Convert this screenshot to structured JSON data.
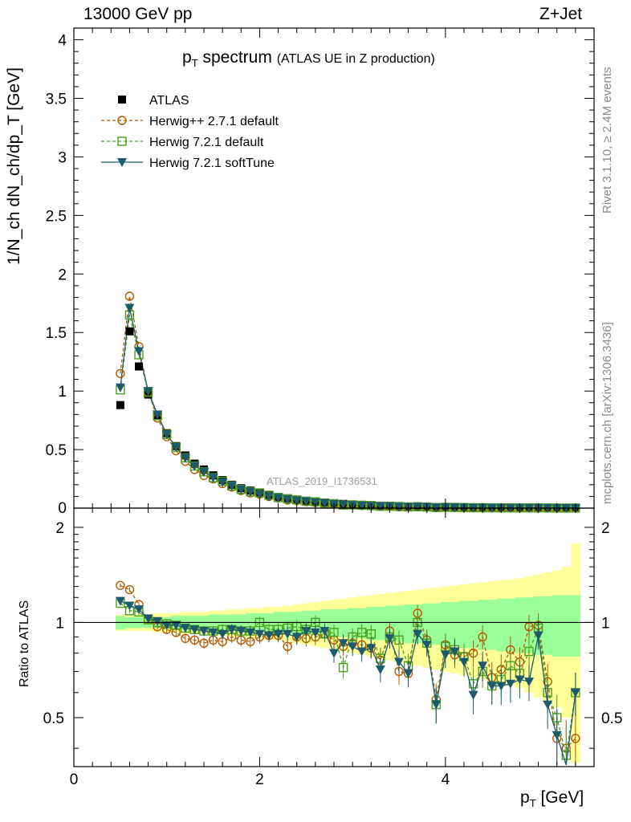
{
  "header": {
    "left": "13000 GeV pp",
    "right": "Z+Jet"
  },
  "side_labels": {
    "rivet": "Rivet 3.1.10, ≥ 2.4M events",
    "mcplots": "mcplots.cern.ch [arXiv:1306.3436]"
  },
  "watermark": "ATLAS_2019_I1736531",
  "chart_data": [
    {
      "type": "line",
      "title": "p_T spectrum",
      "title_parts": {
        "main": "p",
        "sub": "T",
        "rest": " spectrum",
        "note": "(ATLAS UE in Z production)"
      },
      "ylabel": "1/N_ch dN_ch/dp_T [GeV]",
      "xlim": [
        0,
        5.6
      ],
      "ylim": [
        0,
        4.1
      ],
      "yticks": [
        0,
        0.5,
        1,
        1.5,
        2,
        2.5,
        3,
        3.5,
        4
      ],
      "ytick_labels": [
        "0",
        "0.5",
        "1",
        "1.5",
        "2",
        "2.5",
        "3",
        "3.5",
        "4"
      ],
      "legend_position": "top-left",
      "x": [
        0.5,
        0.6,
        0.7,
        0.8,
        0.9,
        1.0,
        1.1,
        1.2,
        1.3,
        1.4,
        1.5,
        1.6,
        1.7,
        1.8,
        1.9,
        2.0,
        2.1,
        2.2,
        2.3,
        2.4,
        2.5,
        2.6,
        2.7,
        2.8,
        2.9,
        3.0,
        3.1,
        3.2,
        3.3,
        3.4,
        3.5,
        3.6,
        3.7,
        3.8,
        3.9,
        4.0,
        4.1,
        4.2,
        4.3,
        4.4,
        4.5,
        4.6,
        4.7,
        4.8,
        4.9,
        5.0,
        5.1,
        5.2,
        5.3,
        5.4
      ],
      "series": [
        {
          "name": "ATLAS",
          "color": "#000000",
          "marker": "filled-square",
          "values": [
            0.88,
            1.51,
            1.21,
            0.97,
            0.79,
            0.64,
            0.53,
            0.45,
            0.38,
            0.33,
            0.28,
            0.24,
            0.2,
            0.17,
            0.15,
            0.13,
            0.11,
            0.095,
            0.083,
            0.072,
            0.062,
            0.054,
            0.047,
            0.041,
            0.036,
            0.031,
            0.027,
            0.024,
            0.021,
            0.018,
            0.016,
            0.014,
            0.012,
            0.011,
            0.0095,
            0.0083,
            0.0073,
            0.0064,
            0.0056,
            0.0049,
            0.0043,
            0.0038,
            0.0033,
            0.0029,
            0.0026,
            0.0023,
            0.002,
            0.0018,
            0.0016,
            0.0014
          ]
        },
        {
          "name": "Herwig++ 2.7.1 default",
          "color": "#b35900",
          "marker": "open-circle",
          "dash": "dashed",
          "values": [
            1.15,
            1.81,
            1.38,
            0.99,
            0.77,
            0.61,
            0.49,
            0.4,
            0.33,
            0.28,
            0.25,
            0.21,
            0.18,
            0.15,
            0.13,
            0.12,
            0.1,
            0.087,
            0.07,
            0.065,
            0.055,
            0.048,
            0.043,
            0.036,
            0.03,
            0.027,
            0.023,
            0.02,
            0.016,
            0.017,
            0.011,
            0.01,
            0.013,
            0.0098,
            0.0055,
            0.007,
            0.0058,
            0.005,
            0.0045,
            0.0044,
            0.0029,
            0.0027,
            0.0027,
            0.0022,
            0.0025,
            0.0022,
            0.0013,
            0.00078,
            0.00064,
            0.0006
          ]
        },
        {
          "name": "Herwig 7.2.1 default",
          "color": "#4aa01c",
          "marker": "open-square",
          "dash": "dashed",
          "values": [
            1.01,
            1.65,
            1.31,
            0.99,
            0.79,
            0.63,
            0.52,
            0.43,
            0.36,
            0.31,
            0.26,
            0.23,
            0.19,
            0.16,
            0.14,
            0.13,
            0.11,
            0.09,
            0.08,
            0.07,
            0.059,
            0.054,
            0.043,
            0.038,
            0.026,
            0.028,
            0.025,
            0.022,
            0.016,
            0.016,
            0.014,
            0.01,
            0.012,
            0.0095,
            0.0052,
            0.007,
            0.006,
            0.005,
            0.0036,
            0.0034,
            0.0027,
            0.0025,
            0.0024,
            0.002,
            0.0021,
            0.0022,
            0.0012,
            0.0009,
            0.0006,
            0.00084
          ]
        },
        {
          "name": "Herwig 7.2.1 softTune",
          "color": "#1e5a6e",
          "marker": "filled-triangle-down",
          "dash": "solid",
          "values": [
            1.03,
            1.71,
            1.34,
            1.0,
            0.8,
            0.63,
            0.52,
            0.43,
            0.36,
            0.31,
            0.26,
            0.22,
            0.19,
            0.16,
            0.14,
            0.12,
            0.1,
            0.087,
            0.076,
            0.065,
            0.058,
            0.05,
            0.044,
            0.033,
            0.031,
            0.026,
            0.022,
            0.02,
            0.015,
            0.016,
            0.012,
            0.0097,
            0.011,
            0.0094,
            0.0052,
            0.0066,
            0.0059,
            0.0048,
            0.0033,
            0.0036,
            0.0027,
            0.0024,
            0.0021,
            0.0019,
            0.0017,
            0.0021,
            0.0011,
            0.0008,
            0.00056,
            0.00084
          ]
        }
      ]
    },
    {
      "type": "line",
      "ylabel": "Ratio to ATLAS",
      "xlabel": "p_T [GeV]",
      "xlabel_parts": {
        "main": "p",
        "sub": "T",
        "rest": " [GeV]"
      },
      "xlim": [
        0,
        5.6
      ],
      "ylim": [
        0.35,
        2.3
      ],
      "xticks": [
        0,
        2,
        4
      ],
      "xtick_labels": [
        "0",
        "2",
        "4"
      ],
      "yticks": [
        0.5,
        1,
        2
      ],
      "ytick_labels": [
        "0.5",
        "1",
        "2"
      ],
      "reference_line": 1,
      "uncertainty_bands": {
        "inner_color": "#99ff99",
        "outer_color": "#ffff99",
        "inner_halfwidth": [
          0.05,
          0.04,
          0.04,
          0.04,
          0.04,
          0.04,
          0.05,
          0.05,
          0.05,
          0.05,
          0.06,
          0.06,
          0.06,
          0.06,
          0.07,
          0.07,
          0.07,
          0.08,
          0.08,
          0.08,
          0.09,
          0.09,
          0.1,
          0.1,
          0.1,
          0.11,
          0.11,
          0.12,
          0.12,
          0.13,
          0.13,
          0.14,
          0.14,
          0.15,
          0.15,
          0.16,
          0.16,
          0.17,
          0.17,
          0.18,
          0.18,
          0.19,
          0.19,
          0.2,
          0.2,
          0.21,
          0.21,
          0.22,
          0.22,
          0.22
        ],
        "outer_halfwidth": [
          0.06,
          0.06,
          0.06,
          0.06,
          0.07,
          0.07,
          0.07,
          0.08,
          0.08,
          0.08,
          0.09,
          0.09,
          0.1,
          0.1,
          0.11,
          0.11,
          0.12,
          0.12,
          0.13,
          0.14,
          0.15,
          0.16,
          0.17,
          0.18,
          0.19,
          0.2,
          0.21,
          0.22,
          0.23,
          0.24,
          0.25,
          0.26,
          0.27,
          0.28,
          0.29,
          0.3,
          0.31,
          0.32,
          0.33,
          0.34,
          0.35,
          0.36,
          0.37,
          0.38,
          0.4,
          0.42,
          0.44,
          0.46,
          0.5,
          0.78
        ]
      },
      "series": [
        {
          "name": "Herwig++ 2.7.1 default",
          "color": "#b35900",
          "marker": "open-circle",
          "dash": "dashed",
          "values": [
            1.31,
            1.27,
            1.14,
            1.02,
            0.97,
            0.95,
            0.93,
            0.89,
            0.88,
            0.86,
            0.88,
            0.87,
            0.9,
            0.88,
            0.87,
            0.9,
            0.91,
            0.91,
            0.84,
            0.9,
            0.89,
            0.9,
            0.92,
            0.88,
            0.84,
            0.86,
            0.85,
            0.83,
            0.76,
            0.94,
            0.7,
            0.69,
            1.07,
            0.88,
            0.57,
            0.85,
            0.79,
            0.78,
            0.8,
            0.9,
            0.67,
            0.71,
            0.82,
            0.75,
            0.97,
            0.98,
            0.65,
            0.43,
            0.4,
            0.43
          ]
        },
        {
          "name": "Herwig 7.2.1 default",
          "color": "#4aa01c",
          "marker": "open-square",
          "dash": "dashed",
          "values": [
            1.15,
            1.09,
            1.08,
            1.02,
            1.0,
            0.99,
            0.98,
            0.96,
            0.95,
            0.94,
            0.94,
            0.95,
            0.95,
            0.94,
            0.94,
            1.0,
            0.95,
            0.95,
            0.96,
            0.97,
            0.95,
            1.0,
            0.92,
            0.93,
            0.72,
            0.9,
            0.93,
            0.92,
            0.77,
            0.9,
            0.88,
            0.73,
            1.0,
            0.86,
            0.55,
            0.84,
            0.82,
            0.78,
            0.64,
            0.7,
            0.63,
            0.66,
            0.73,
            0.69,
            0.81,
            0.96,
            0.6,
            0.5,
            0.38,
            0.6
          ]
        },
        {
          "name": "Herwig 7.2.1 softTune",
          "color": "#1e5a6e",
          "marker": "filled-triangle-down",
          "dash": "solid",
          "values": [
            1.17,
            1.13,
            1.1,
            1.03,
            1.01,
            0.98,
            0.98,
            0.96,
            0.95,
            0.94,
            0.93,
            0.92,
            0.95,
            0.94,
            0.93,
            0.92,
            0.91,
            0.92,
            0.92,
            0.9,
            0.94,
            0.93,
            0.94,
            0.8,
            0.86,
            0.84,
            0.81,
            0.83,
            0.71,
            0.89,
            0.75,
            0.69,
            0.92,
            0.85,
            0.55,
            0.79,
            0.81,
            0.75,
            0.59,
            0.73,
            0.63,
            0.63,
            0.64,
            0.66,
            0.65,
            0.91,
            0.55,
            0.44,
            0.35,
            0.6
          ]
        }
      ]
    }
  ]
}
